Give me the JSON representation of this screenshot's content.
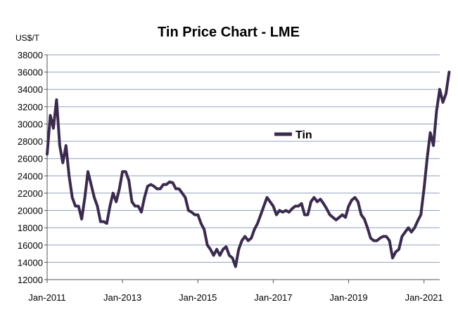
{
  "chart_data": {
    "type": "line",
    "title": "Tin Price Chart - LME",
    "ylabel": "US$/T",
    "xlabel": "",
    "ylim": [
      12000,
      38000
    ],
    "yticks": [
      12000,
      14000,
      16000,
      18000,
      20000,
      22000,
      24000,
      26000,
      28000,
      30000,
      32000,
      34000,
      36000,
      38000
    ],
    "xlim": [
      "2011-01",
      "2021-06"
    ],
    "xticks": [
      "Jan-2011",
      "Jan-2013",
      "Jan-2015",
      "Jan-2017",
      "Jan-2019",
      "Jan-2021"
    ],
    "grid": true,
    "legend": "center-right",
    "series": [
      {
        "name": "Tin",
        "color": "#3b2a4f",
        "points": [
          [
            "2011-01",
            26500
          ],
          [
            "2011-02",
            31000
          ],
          [
            "2011-03",
            29500
          ],
          [
            "2011-04",
            32800
          ],
          [
            "2011-05",
            27500
          ],
          [
            "2011-06",
            25500
          ],
          [
            "2011-07",
            27500
          ],
          [
            "2011-08",
            24000
          ],
          [
            "2011-09",
            21500
          ],
          [
            "2011-10",
            20500
          ],
          [
            "2011-11",
            20500
          ],
          [
            "2011-12",
            19000
          ],
          [
            "2012-01",
            21500
          ],
          [
            "2012-02",
            24500
          ],
          [
            "2012-03",
            23000
          ],
          [
            "2012-04",
            21500
          ],
          [
            "2012-05",
            20500
          ],
          [
            "2012-06",
            18700
          ],
          [
            "2012-07",
            18700
          ],
          [
            "2012-08",
            18500
          ],
          [
            "2012-09",
            20500
          ],
          [
            "2012-10",
            22000
          ],
          [
            "2012-11",
            21000
          ],
          [
            "2012-12",
            22500
          ],
          [
            "2013-01",
            24500
          ],
          [
            "2013-02",
            24500
          ],
          [
            "2013-03",
            23500
          ],
          [
            "2013-04",
            21000
          ],
          [
            "2013-05",
            20500
          ],
          [
            "2013-06",
            20500
          ],
          [
            "2013-07",
            19800
          ],
          [
            "2013-08",
            21500
          ],
          [
            "2013-09",
            22800
          ],
          [
            "2013-10",
            23000
          ],
          [
            "2013-11",
            22800
          ],
          [
            "2013-12",
            22500
          ],
          [
            "2014-01",
            22500
          ],
          [
            "2014-02",
            23000
          ],
          [
            "2014-03",
            23000
          ],
          [
            "2014-04",
            23300
          ],
          [
            "2014-05",
            23200
          ],
          [
            "2014-06",
            22500
          ],
          [
            "2014-07",
            22500
          ],
          [
            "2014-08",
            22000
          ],
          [
            "2014-09",
            21500
          ],
          [
            "2014-10",
            20000
          ],
          [
            "2014-11",
            19800
          ],
          [
            "2014-12",
            19500
          ],
          [
            "2015-01",
            19500
          ],
          [
            "2015-02",
            18500
          ],
          [
            "2015-03",
            17800
          ],
          [
            "2015-04",
            16000
          ],
          [
            "2015-05",
            15500
          ],
          [
            "2015-06",
            14800
          ],
          [
            "2015-07",
            15500
          ],
          [
            "2015-08",
            14800
          ],
          [
            "2015-09",
            15500
          ],
          [
            "2015-10",
            15800
          ],
          [
            "2015-11",
            14800
          ],
          [
            "2015-12",
            14500
          ],
          [
            "2016-01",
            13500
          ],
          [
            "2016-02",
            15500
          ],
          [
            "2016-03",
            16500
          ],
          [
            "2016-04",
            17000
          ],
          [
            "2016-05",
            16500
          ],
          [
            "2016-06",
            16800
          ],
          [
            "2016-07",
            17800
          ],
          [
            "2016-08",
            18500
          ],
          [
            "2016-09",
            19500
          ],
          [
            "2016-10",
            20500
          ],
          [
            "2016-11",
            21500
          ],
          [
            "2016-12",
            21000
          ],
          [
            "2017-01",
            20500
          ],
          [
            "2017-02",
            19500
          ],
          [
            "2017-03",
            20000
          ],
          [
            "2017-04",
            19800
          ],
          [
            "2017-05",
            20000
          ],
          [
            "2017-06",
            19800
          ],
          [
            "2017-07",
            20200
          ],
          [
            "2017-08",
            20500
          ],
          [
            "2017-09",
            20500
          ],
          [
            "2017-10",
            20800
          ],
          [
            "2017-11",
            19500
          ],
          [
            "2017-12",
            19500
          ],
          [
            "2018-01",
            21000
          ],
          [
            "2018-02",
            21500
          ],
          [
            "2018-03",
            21000
          ],
          [
            "2018-04",
            21300
          ],
          [
            "2018-05",
            20800
          ],
          [
            "2018-06",
            20200
          ],
          [
            "2018-07",
            19500
          ],
          [
            "2018-08",
            19200
          ],
          [
            "2018-09",
            18900
          ],
          [
            "2018-10",
            19200
          ],
          [
            "2018-11",
            19500
          ],
          [
            "2018-12",
            19200
          ],
          [
            "2019-01",
            20500
          ],
          [
            "2019-02",
            21200
          ],
          [
            "2019-03",
            21500
          ],
          [
            "2019-04",
            21000
          ],
          [
            "2019-05",
            19500
          ],
          [
            "2019-06",
            19000
          ],
          [
            "2019-07",
            18000
          ],
          [
            "2019-08",
            16800
          ],
          [
            "2019-09",
            16500
          ],
          [
            "2019-10",
            16500
          ],
          [
            "2019-11",
            16800
          ],
          [
            "2019-12",
            17000
          ],
          [
            "2020-01",
            17000
          ],
          [
            "2020-02",
            16500
          ],
          [
            "2020-03",
            14500
          ],
          [
            "2020-04",
            15200
          ],
          [
            "2020-05",
            15500
          ],
          [
            "2020-06",
            17000
          ],
          [
            "2020-07",
            17500
          ],
          [
            "2020-08",
            18000
          ],
          [
            "2020-09",
            17500
          ],
          [
            "2020-10",
            18000
          ],
          [
            "2020-11",
            18800
          ],
          [
            "2020-12",
            19500
          ],
          [
            "2021-01",
            22500
          ],
          [
            "2021-02",
            26000
          ],
          [
            "2021-03",
            29000
          ],
          [
            "2021-04",
            27500
          ],
          [
            "2021-05",
            31500
          ],
          [
            "2021-06",
            34000
          ],
          [
            "2021-07",
            32500
          ],
          [
            "2021-08",
            33500
          ],
          [
            "2021-09",
            36000
          ]
        ]
      }
    ]
  }
}
